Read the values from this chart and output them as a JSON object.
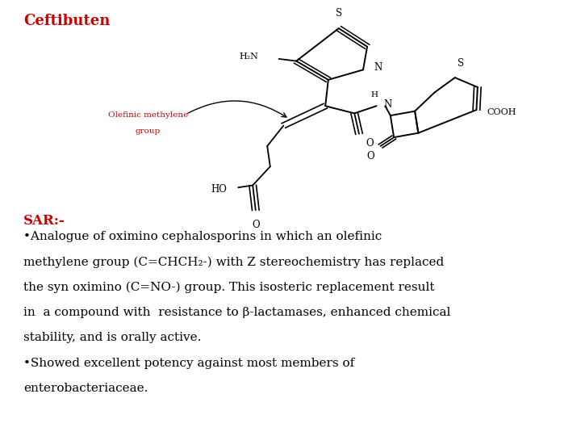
{
  "title": "Ceftibuten",
  "title_color": "#cc0000",
  "title_fontsize": 13,
  "sar_label": "SAR:-",
  "sar_color": "#cc0000",
  "sar_fontsize": 12,
  "bullet1_line1": "•Analogue of oximino cephalosporins in which an olefinic",
  "bullet1_line2": "methylene group (C=CHCH",
  "bullet1_sub": "2",
  "bullet1_line2b": "-) with Z stereochemistry has replaced",
  "bullet1_line3": "the syn oximino (C=NO-) group. This isosteric replacement result",
  "bullet1_line4": "in  a compound with  resistance to β-lactamases, enhanced chemical",
  "bullet1_line5": "stability, and is orally active.",
  "bullet2_line1": "•Showed excellent potency against most members of",
  "bullet2_line2": "enterobacteriaceae.",
  "text_color": "#000000",
  "text_fontsize": 11,
  "bg_color": "#ffffff",
  "olefinic_label_line1": "Olefinic methylene",
  "olefinic_label_line2": "group",
  "olefinic_color": "#cc0000",
  "olefinic_fontsize": 7.5
}
